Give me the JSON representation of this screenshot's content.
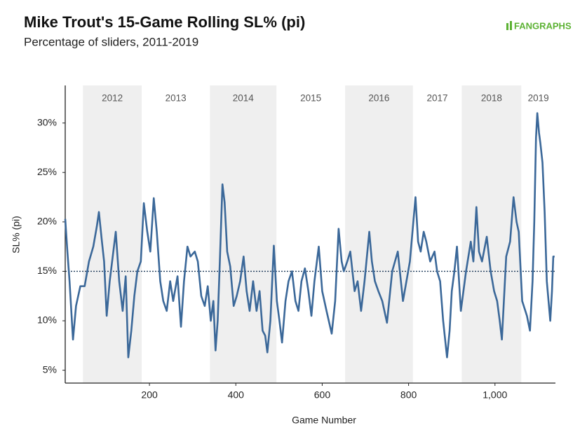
{
  "chart_data": {
    "type": "line",
    "title": "Mike Trout's 15-Game Rolling SL% (pi)",
    "subtitle": "Percentage of sliders, 2011-2019",
    "logo": "FANGRAPHS",
    "x_label": "Game Number",
    "y_label": "SL% (pi)",
    "color": "#3b6899",
    "reference_line": 15,
    "xlim": [
      5,
      1140
    ],
    "ylim": [
      3.7,
      33.8
    ],
    "xticks": [
      200,
      400,
      600,
      800,
      {
        "value": 1000,
        "label": "1,000"
      }
    ],
    "yticks": [
      {
        "value": 5,
        "label": "5%"
      },
      {
        "value": 10,
        "label": "10%"
      },
      {
        "value": 15,
        "label": "15%"
      },
      {
        "value": 20,
        "label": "20%"
      },
      {
        "value": 25,
        "label": "25%"
      },
      {
        "value": 30,
        "label": "30%"
      }
    ],
    "year_bands": [
      {
        "label": "2012",
        "start": 46,
        "end": 182,
        "shaded": true
      },
      {
        "label": "2013",
        "start": 182,
        "end": 340,
        "shaded": false
      },
      {
        "label": "2014",
        "start": 340,
        "end": 494,
        "shaded": true
      },
      {
        "label": "2015",
        "start": 494,
        "end": 653,
        "shaded": false
      },
      {
        "label": "2016",
        "start": 653,
        "end": 810,
        "shaded": true
      },
      {
        "label": "2017",
        "start": 810,
        "end": 923,
        "shaded": false
      },
      {
        "label": "2018",
        "start": 923,
        "end": 1061,
        "shaded": true
      },
      {
        "label": "2019",
        "start": 1061,
        "end": 1140,
        "shaded": false
      }
    ],
    "x": [
      5,
      10,
      15,
      23,
      30,
      40,
      50,
      60,
      70,
      78,
      83,
      90,
      95,
      101,
      108,
      115,
      122,
      130,
      138,
      145,
      151,
      158,
      165,
      172,
      180,
      187,
      195,
      202,
      210,
      217,
      225,
      232,
      240,
      248,
      255,
      265,
      273,
      280,
      288,
      295,
      305,
      312,
      320,
      328,
      335,
      342,
      348,
      353,
      358,
      363,
      369,
      374,
      380,
      387,
      395,
      402,
      410,
      418,
      425,
      432,
      440,
      448,
      455,
      462,
      468,
      473,
      480,
      488,
      495,
      501,
      507,
      515,
      522,
      530,
      538,
      545,
      552,
      560,
      568,
      575,
      582,
      592,
      600,
      610,
      622,
      630,
      638,
      645,
      650,
      658,
      665,
      675,
      682,
      690,
      698,
      709,
      715,
      722,
      730,
      739,
      750,
      762,
      775,
      787,
      795,
      803,
      816,
      822,
      828,
      835,
      841,
      850,
      860,
      866,
      873,
      880,
      889,
      895,
      900,
      906,
      912,
      921,
      927,
      933,
      944,
      950,
      957,
      963,
      970,
      981,
      990,
      998,
      1005,
      1011,
      1016,
      1026,
      1035,
      1043,
      1050,
      1055,
      1063,
      1074,
      1081,
      1087,
      1091,
      1095,
      1098,
      1102,
      1105,
      1110,
      1115,
      1120,
      1128,
      1132,
      1135,
      1138
    ],
    "values": [
      20.3,
      17,
      14,
      8.1,
      11.5,
      13.5,
      13.5,
      16,
      17.5,
      19.5,
      21,
      18,
      16,
      10.5,
      14,
      16.5,
      19,
      14,
      11,
      14.5,
      6.3,
      9,
      12.5,
      15,
      16,
      21.9,
      19,
      17,
      22.4,
      19,
      14,
      12,
      11,
      14,
      12,
      14.5,
      9.4,
      14,
      17.5,
      16.5,
      17,
      16,
      12.5,
      11.5,
      13.5,
      10,
      12,
      7,
      10,
      16,
      23.8,
      22,
      17,
      15.5,
      11.5,
      12.5,
      14,
      16.5,
      13,
      11,
      14,
      11,
      13,
      9,
      8.5,
      6.8,
      10,
      17.6,
      12,
      10,
      7.8,
      12,
      14,
      15,
      12,
      11,
      14,
      15.3,
      13,
      10.5,
      14,
      17.5,
      13,
      11,
      8.7,
      12,
      19.3,
      16,
      15,
      16,
      17,
      13,
      14,
      11,
      14,
      19,
      16,
      14,
      13,
      12,
      9.8,
      15,
      17,
      12,
      14,
      16,
      22.5,
      18,
      17,
      19,
      18,
      16,
      17,
      15,
      14,
      10,
      6.3,
      9,
      13,
      15,
      17.5,
      11,
      13,
      15,
      18,
      16,
      21.5,
      17,
      16,
      18.5,
      15,
      13,
      12,
      10,
      8.1,
      16.5,
      18,
      22.5,
      20,
      19,
      12,
      10.5,
      9,
      14,
      20,
      28.5,
      31,
      29,
      28,
      26,
      21,
      14,
      10,
      13,
      16.5,
      16.5
    ]
  }
}
